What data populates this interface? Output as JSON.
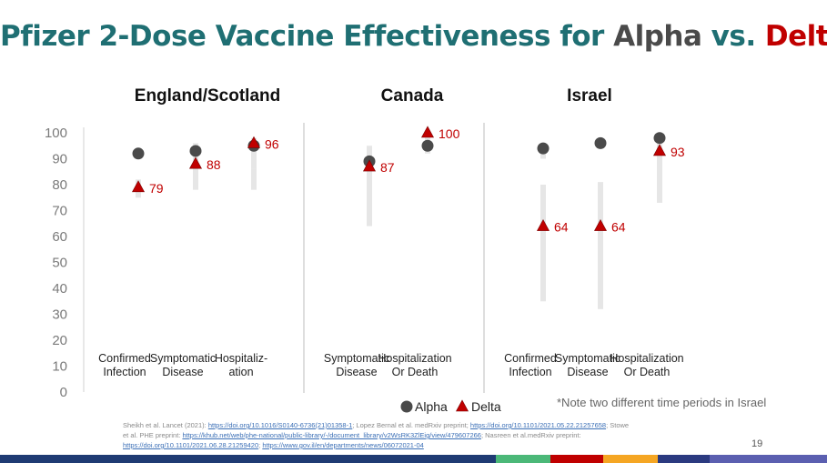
{
  "title": {
    "prefix": "Pfizer 2-Dose Vaccine Effectiveness for ",
    "alpha": "Alpha",
    "vs": " vs. ",
    "delta": "Delta"
  },
  "colors": {
    "title": "#1f6f73",
    "alpha": "#4a4a4a",
    "delta": "#c00000",
    "ci_bar": "#e6e6e6"
  },
  "chart_data": {
    "type": "scatter",
    "ylim": [
      0,
      100
    ],
    "yticks": [
      0,
      10,
      20,
      30,
      40,
      50,
      60,
      70,
      80,
      90,
      100
    ],
    "legend": {
      "alpha": "Alpha",
      "delta": "Delta",
      "position": "bottom-center"
    },
    "note": "*Note two different time periods in Israel",
    "panels": [
      {
        "name": "England/Scotland",
        "categories": [
          {
            "label": [
              "Confirmed",
              "Infection"
            ],
            "alpha": 92,
            "delta": 79,
            "delta_label": "79",
            "ci": [
              [
                75,
                82
              ]
            ]
          },
          {
            "label": [
              "Symptomatic",
              "Disease"
            ],
            "alpha": 93,
            "delta": 88,
            "delta_label": "88",
            "ci": [
              [
                78,
                96
              ]
            ]
          },
          {
            "label": [
              "Hospitaliz-",
              "ation"
            ],
            "alpha": 95,
            "delta": 96,
            "delta_label": "96",
            "ci": [
              [
                78,
                86
              ],
              [
                86,
                98
              ]
            ]
          }
        ]
      },
      {
        "name": "Canada",
        "categories": [
          {
            "label": [
              "Symptomatic",
              "Disease"
            ],
            "alpha": 89,
            "delta": 87,
            "delta_label": "87",
            "ci": [
              [
                64,
                95
              ]
            ]
          },
          {
            "label": [
              "Hospitalization",
              "Or Death"
            ],
            "alpha": 95,
            "delta": 100,
            "delta_label": "100",
            "ci": [
              [
                92,
                100
              ]
            ]
          }
        ]
      },
      {
        "name": "Israel",
        "categories": [
          {
            "label": [
              "Confirmed",
              "Infection"
            ],
            "alpha": 94,
            "delta": 64,
            "delta_label": "64",
            "ci": [
              [
                35,
                80
              ],
              [
                90,
                96
              ]
            ]
          },
          {
            "label": [
              "Symptomatic",
              "Disease"
            ],
            "alpha": 96,
            "delta": 64,
            "delta_label": "64",
            "ci": [
              [
                32,
                81
              ]
            ]
          },
          {
            "label": [
              "Hospitalization",
              "Or Death"
            ],
            "alpha": 98,
            "delta": 93,
            "delta_label": "93",
            "ci": [
              [
                73,
                100
              ]
            ]
          }
        ]
      }
    ]
  },
  "references": {
    "line1_text1": "Sheikh et al. Lancet (2021): ",
    "line1_link1": "https://doi.org/10.1016/S0140-6736(21)01358-1",
    "line1_text2": "; Lopez Bernal et al. medRxiv preprint; ",
    "line1_link2": "https://doi.org/10.1101/2021.05.22.21257658",
    "line1_text3": "; Stowe",
    "line2_text1": "et al. PHE preprint: ",
    "line2_link1": "https://khub.net/web/phe-national/public-library/-/document_library/v2WsRK3ZlEig/view/479607266",
    "line2_text2": "; Nasreen et al.medRxiv preprint:",
    "line3_link1": "https://doi.org/10.1101/2021.06.28.21259420",
    "line3_text1": "; ",
    "line3_link2": "https://www.gov.il/en/departments/news/06072021-04"
  },
  "page_number": "19",
  "bottom_bar_colors": [
    "#1f3b73",
    "#1f3b73",
    "#4bb878",
    "#c00000",
    "#f5a623",
    "#2b3a80",
    "#5b5fb0"
  ]
}
